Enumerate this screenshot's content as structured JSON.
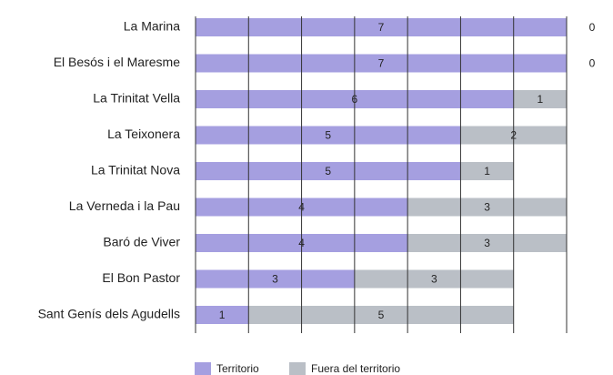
{
  "chart_data": {
    "type": "stacked-barh",
    "categories": [
      "La Marina",
      "El Besós i el Maresme",
      "La Trinitat Vella",
      "La Teixonera",
      "La Trinitat Nova",
      "La Verneda i la Pau",
      "Baró de Viver",
      "El Bon Pastor",
      "Sant Genís dels Agudells"
    ],
    "series": [
      {
        "name": "Territorio",
        "color": "#a59fe0",
        "values": [
          7,
          7,
          6,
          5,
          5,
          4,
          4,
          3,
          1
        ]
      },
      {
        "name": "Fuera del territorio",
        "color": "#babfc6",
        "values": [
          0,
          0,
          1,
          2,
          1,
          3,
          3,
          3,
          5
        ]
      }
    ],
    "xlim": [
      0,
      7
    ],
    "xticks": [
      0,
      1,
      2,
      3,
      4,
      5,
      6,
      7
    ],
    "grid": true,
    "legend": "bottom"
  }
}
